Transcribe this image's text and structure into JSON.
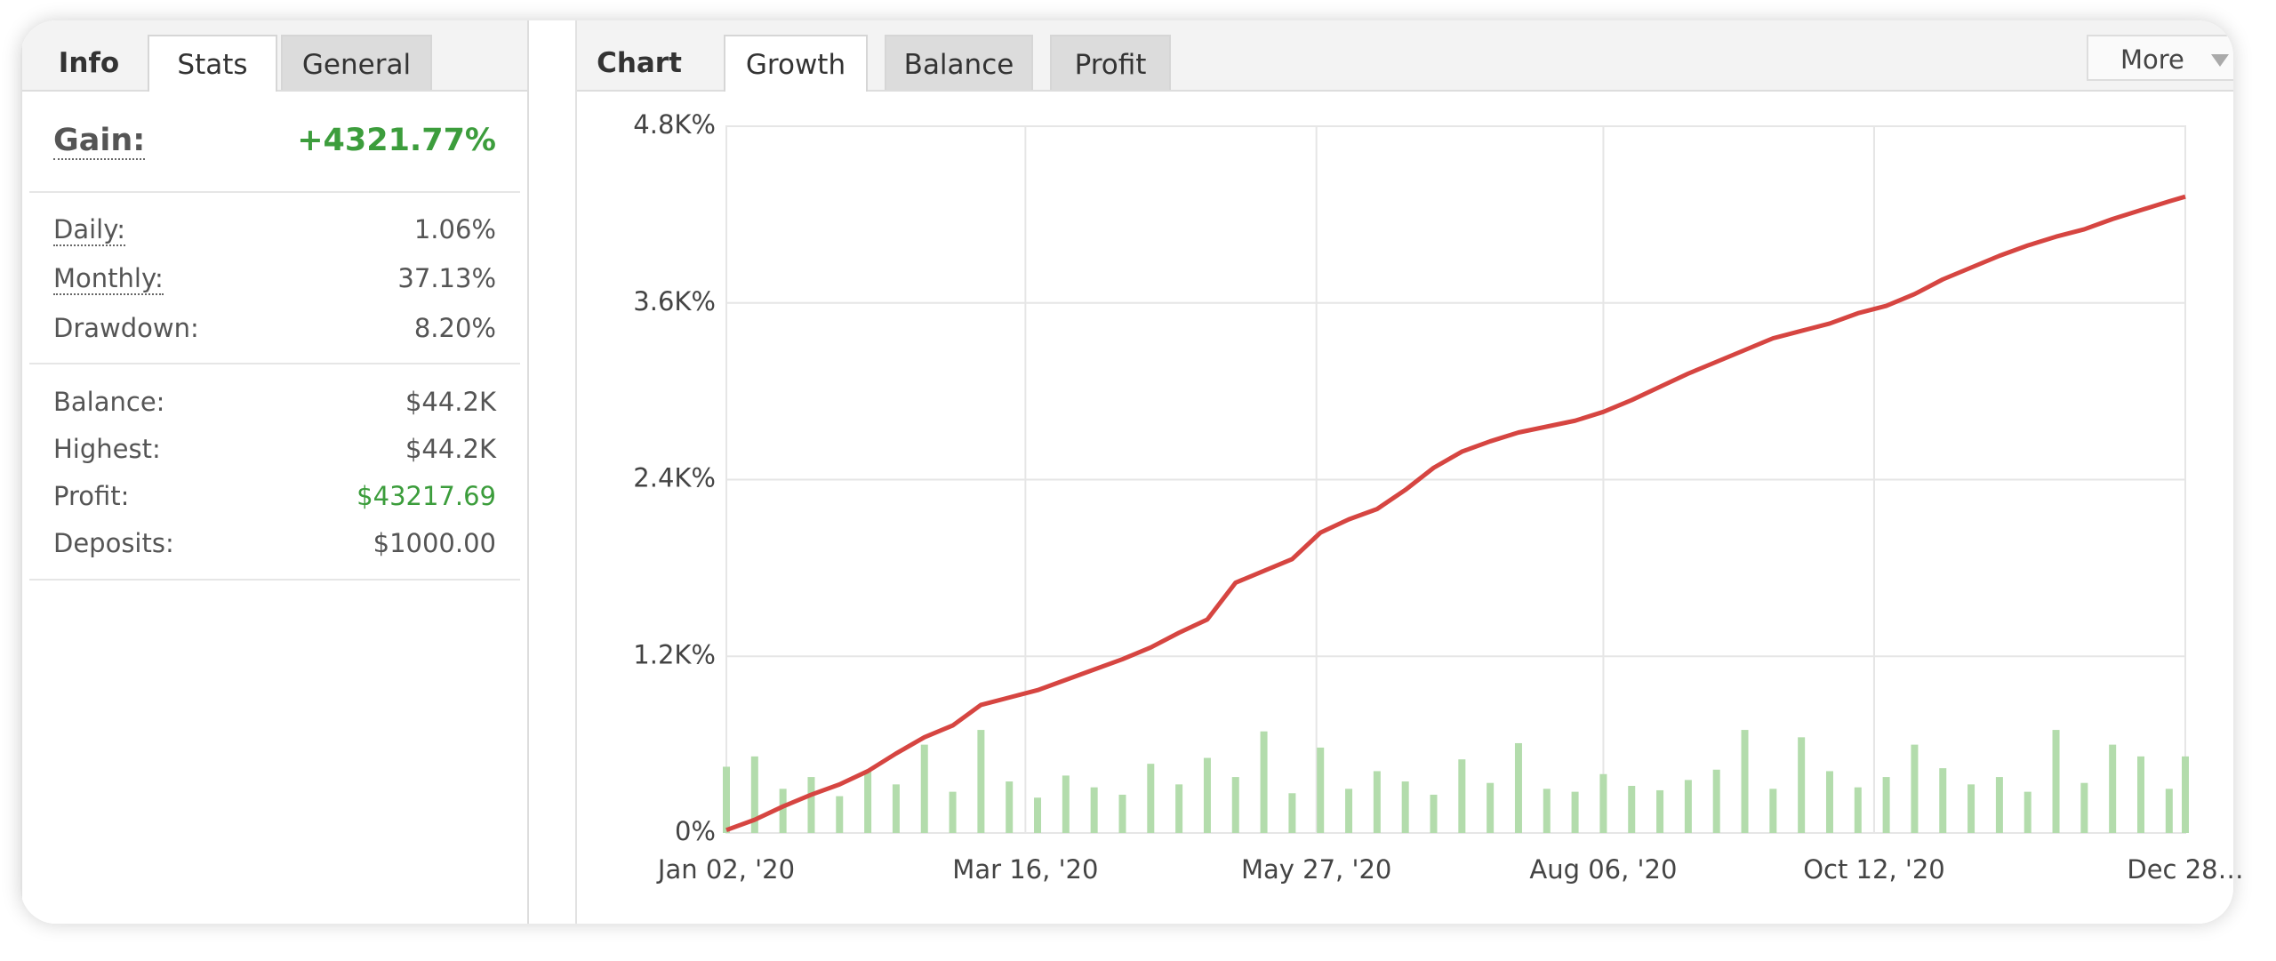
{
  "info_panel": {
    "tabs": [
      "Info",
      "Stats",
      "General"
    ],
    "gain": {
      "label": "Gain:",
      "value": "+4321.77%"
    },
    "rates": [
      {
        "label": "Daily:",
        "value": "1.06%"
      },
      {
        "label": "Monthly:",
        "value": "37.13%"
      },
      {
        "label": "Drawdown:",
        "value": "8.20%"
      }
    ],
    "account": [
      {
        "label": "Balance:",
        "value": "$44.2K"
      },
      {
        "label": "Highest:",
        "value": "$44.2K"
      },
      {
        "label": "Profit:",
        "value": "$43217.69"
      },
      {
        "label": "Deposits:",
        "value": "$1000.00"
      }
    ]
  },
  "chart_panel": {
    "tabs": [
      "Chart",
      "Growth",
      "Balance",
      "Profit"
    ],
    "more": "More"
  },
  "chart_data": {
    "type": "line",
    "x": [
      "2020-01-02",
      "2020-01-09",
      "2020-01-16",
      "2020-01-23",
      "2020-01-30",
      "2020-02-06",
      "2020-02-13",
      "2020-02-20",
      "2020-02-27",
      "2020-03-05",
      "2020-03-12",
      "2020-03-19",
      "2020-03-26",
      "2020-04-02",
      "2020-04-09",
      "2020-04-16",
      "2020-04-23",
      "2020-04-30",
      "2020-05-07",
      "2020-05-14",
      "2020-05-21",
      "2020-05-28",
      "2020-06-04",
      "2020-06-11",
      "2020-06-18",
      "2020-06-25",
      "2020-07-02",
      "2020-07-09",
      "2020-07-16",
      "2020-07-23",
      "2020-07-30",
      "2020-08-06",
      "2020-08-13",
      "2020-08-20",
      "2020-08-27",
      "2020-09-03",
      "2020-09-10",
      "2020-09-17",
      "2020-09-24",
      "2020-10-01",
      "2020-10-08",
      "2020-10-15",
      "2020-10-22",
      "2020-10-29",
      "2020-11-05",
      "2020-11-12",
      "2020-11-19",
      "2020-11-26",
      "2020-12-03",
      "2020-12-10",
      "2020-12-17",
      "2020-12-24",
      "2020-12-28"
    ],
    "series": [
      {
        "type": "line",
        "color": "#d64541",
        "values": [
          20,
          90,
          180,
          260,
          330,
          420,
          540,
          650,
          730,
          870,
          920,
          970,
          1040,
          1110,
          1180,
          1260,
          1360,
          1450,
          1700,
          1780,
          1860,
          2040,
          2130,
          2200,
          2330,
          2480,
          2590,
          2660,
          2720,
          2760,
          2800,
          2860,
          2940,
          3030,
          3120,
          3200,
          3280,
          3360,
          3410,
          3460,
          3530,
          3580,
          3660,
          3760,
          3840,
          3920,
          3990,
          4050,
          4100,
          4170,
          4230,
          4290,
          4321.77
        ]
      },
      {
        "type": "bar",
        "color": "#b3dcac",
        "values": [
          450,
          520,
          300,
          380,
          250,
          420,
          330,
          600,
          280,
          700,
          350,
          240,
          390,
          310,
          260,
          470,
          330,
          510,
          380,
          690,
          270,
          580,
          300,
          420,
          350,
          260,
          500,
          340,
          610,
          300,
          280,
          400,
          320,
          290,
          360,
          430,
          700,
          300,
          650,
          420,
          310,
          380,
          600,
          440,
          330,
          380,
          280,
          700,
          340,
          600,
          520,
          300,
          520
        ]
      }
    ],
    "xlim": [
      "2020-01-02",
      "2020-12-28"
    ],
    "xticks": [
      {
        "value": "2020-01-02",
        "label": "Jan 02, '20"
      },
      {
        "value": "2020-03-16",
        "label": "Mar 16, '20"
      },
      {
        "value": "2020-05-27",
        "label": "May 27, '20"
      },
      {
        "value": "2020-08-06",
        "label": "Aug 06, '20"
      },
      {
        "value": "2020-10-12",
        "label": "Oct 12, '20"
      },
      {
        "value": "2020-12-28",
        "label": "Dec 28…"
      }
    ],
    "ylim": [
      0,
      4800
    ],
    "yticks": [
      {
        "value": 0,
        "label": "0%"
      },
      {
        "value": 1200,
        "label": "1.2K%"
      },
      {
        "value": 2400,
        "label": "2.4K%"
      },
      {
        "value": 3600,
        "label": "3.6K%"
      },
      {
        "value": 4800,
        "label": "4.8K%"
      }
    ],
    "grid": true
  }
}
